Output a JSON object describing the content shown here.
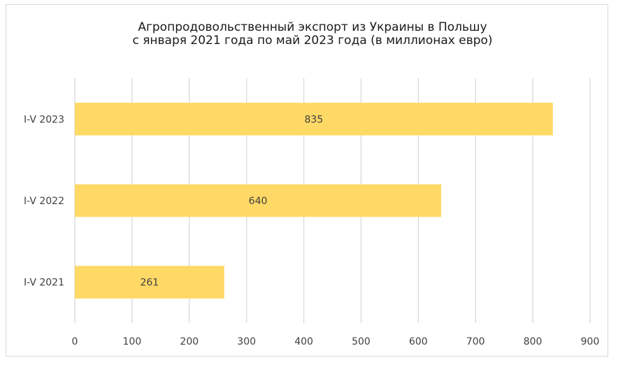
{
  "chart_data": {
    "type": "bar",
    "orientation": "horizontal",
    "title": [
      "Агропродовольственный экспорт из Украины в Польшу",
      "с января 2021 года по май 2023 года (в миллионах евро)"
    ],
    "categories": [
      "I-V 2023",
      "I-V 2022",
      "I-V 2021"
    ],
    "values": [
      835,
      640,
      261
    ],
    "data_labels": [
      "835",
      "640",
      "261"
    ],
    "xlim": [
      0,
      900
    ],
    "x_ticks": [
      0,
      100,
      200,
      300,
      400,
      500,
      600,
      700,
      800,
      900
    ],
    "x_tick_labels": [
      "0",
      "100",
      "200",
      "300",
      "400",
      "500",
      "600",
      "700",
      "800",
      "900"
    ],
    "grid": true,
    "legend": "none",
    "bar_color": "#FFD966",
    "grid_color": "#D9D9D9",
    "text_color": "#404040"
  }
}
